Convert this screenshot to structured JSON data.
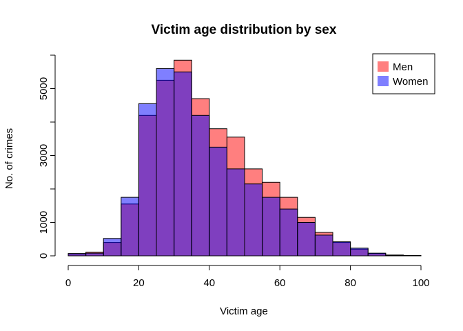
{
  "chart_data": {
    "type": "bar",
    "title": "Victim age distribution by sex",
    "xlabel": "Victim age",
    "ylabel": "No. of crimes",
    "xlim": [
      0,
      100
    ],
    "ylim": [
      0,
      6000
    ],
    "x_ticks": [
      0,
      20,
      40,
      60,
      80,
      100
    ],
    "y_ticks": [
      0,
      1000,
      3000,
      5000
    ],
    "bin_edges": [
      0,
      5,
      10,
      15,
      20,
      25,
      30,
      35,
      40,
      45,
      50,
      55,
      60,
      65,
      70,
      75,
      80,
      85,
      90,
      95,
      100
    ],
    "legend_position": "top-right",
    "grid": false,
    "series": [
      {
        "name": "Men",
        "color": "#FF0000",
        "alpha": 0.5,
        "values": [
          60,
          110,
          400,
          1550,
          4200,
          5250,
          5850,
          4700,
          3800,
          3550,
          2600,
          2200,
          1750,
          1150,
          700,
          400,
          200,
          70,
          25,
          10
        ]
      },
      {
        "name": "Women",
        "color": "#0000FF",
        "alpha": 0.5,
        "values": [
          70,
          80,
          520,
          1750,
          4550,
          5600,
          5500,
          4200,
          3250,
          2600,
          2150,
          1750,
          1400,
          1000,
          620,
          420,
          230,
          80,
          20,
          10
        ]
      }
    ]
  }
}
